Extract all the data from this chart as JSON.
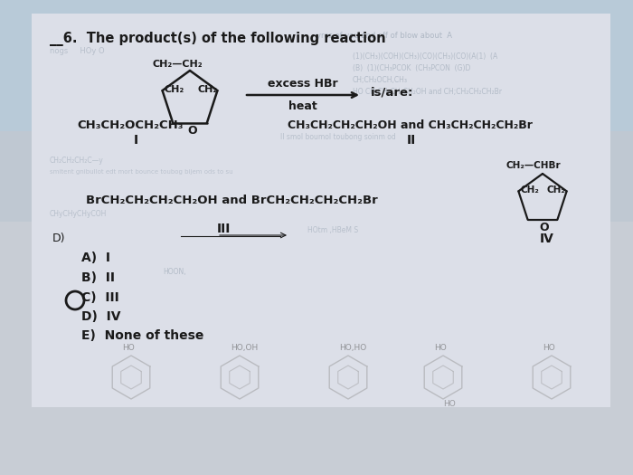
{
  "bg_top_color": "#a8b4c0",
  "bg_bottom_color": "#c8cdd5",
  "paper_color": "#dcdfe8",
  "font_color": "#1a1a1a",
  "title": "__6.  The product(s) of the following reaction",
  "reaction_above": "excess HBr",
  "reaction_below": "heat",
  "is_are": "is/are:",
  "compound_I": "CH₃CH₂OCH₂CH₃",
  "roman_I": "I",
  "compound_II": "CH₃CH₂CH₂CH₂OH and CH₃CH₂CH₂CH₂Br",
  "roman_II": "II",
  "compound_III": "BrCH₂CH₂CH₂CH₂OH and BrCH₂CH₂CH₂CH₂Br",
  "roman_III": "III",
  "roman_IV": "IV",
  "choices": [
    "A)  I",
    "B)  II",
    "C)  III",
    "D)  IV",
    "E)  None of these"
  ],
  "correct_index": 2,
  "ghost_text_color": "#8090a0"
}
